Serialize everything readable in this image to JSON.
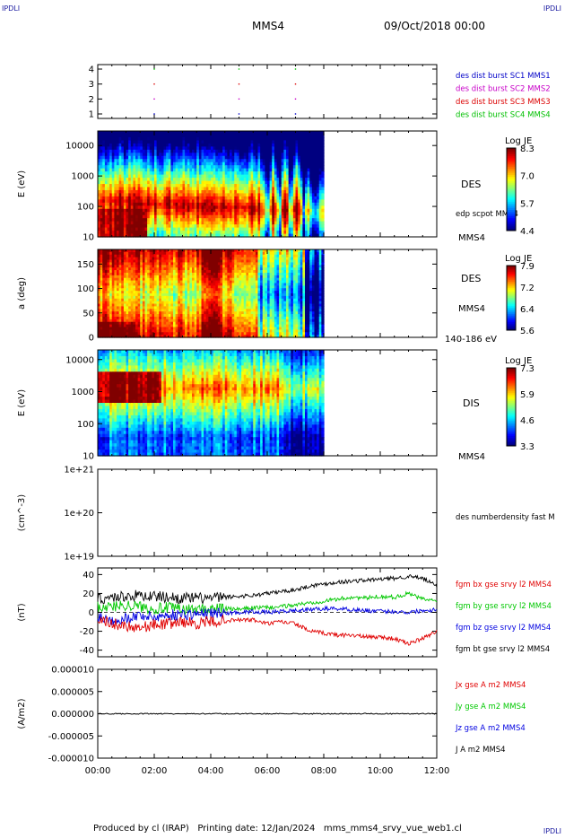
{
  "corner_marks": {
    "top_left": "IPDLI",
    "top_right": "IPDLI",
    "bottom_right": "IPDLI"
  },
  "header": {
    "spacecraft": "MMS4",
    "date": "09/Oct/2018 00:00"
  },
  "footer": {
    "text": "Produced by cl (IRAP)   Printing date: 12/Jan/2024   mms_mms4_srvy_vue_web1.cl"
  },
  "colors": {
    "mms1": "#0000c8",
    "mms2": "#c800c8",
    "mms3": "#dc0000",
    "mms4": "#00c000",
    "bx": "#e00000",
    "by": "#00c800",
    "bz": "#0000e0",
    "bt": "#000000"
  },
  "time_axis": {
    "start_hour": 0,
    "end_hour": 12,
    "ticks": [
      "00:00",
      "02:00",
      "04:00",
      "06:00",
      "08:00",
      "10:00",
      "12:00"
    ],
    "data_end_hour": 8.0
  },
  "chart_data": [
    {
      "type": "scatter",
      "panel": "burst coverage",
      "ylim": [
        0.7,
        4.3
      ],
      "y_ticks": [
        "1",
        "2",
        "3",
        "4"
      ],
      "legend": [
        "des dist burst SC1 MMS1",
        "des dist burst SC2 MMS2",
        "des dist burst SC3 MMS3",
        "des dist burst SC4 MMS4"
      ],
      "points": [
        {
          "t": 2.0,
          "sc": [
            1,
            2,
            3,
            4
          ]
        },
        {
          "t": 5.0,
          "sc": [
            1,
            2,
            3,
            4
          ]
        },
        {
          "t": 7.0,
          "sc": [
            1,
            2,
            3,
            4
          ]
        }
      ]
    },
    {
      "type": "heatmap",
      "panel": "DES energy spectrogram",
      "ylabel": "E (eV)",
      "y_log": true,
      "ylim": [
        10,
        30000
      ],
      "y_ticks": [
        "10",
        "100",
        "1000",
        "10000"
      ],
      "label": "DES",
      "extra_label": "edp scpot MMS4",
      "sc_label": "MMS4",
      "colorbar": {
        "title": "Log JE",
        "max": "8.3",
        "ticks": [
          "8.3",
          "7.0",
          "5.7",
          "4.4"
        ]
      }
    },
    {
      "type": "heatmap",
      "panel": "DES pitch angle",
      "ylabel": "a (deg)",
      "ylim": [
        0,
        180
      ],
      "y_ticks": [
        "0",
        "50",
        "100",
        "150"
      ],
      "label": "DES",
      "sc_label": "MMS4",
      "energy_band": "140-186 eV",
      "colorbar": {
        "title": "Log JE",
        "ticks": [
          "7.9",
          "7.2",
          "6.4",
          "5.6"
        ]
      }
    },
    {
      "type": "heatmap",
      "panel": "DIS energy spectrogram",
      "ylabel": "E (eV)",
      "y_log": true,
      "ylim": [
        10,
        20000
      ],
      "y_ticks": [
        "10",
        "100",
        "1000",
        "10000"
      ],
      "label": "DIS",
      "sc_label": "MMS4",
      "colorbar": {
        "title": "Log JE",
        "ticks": [
          "7.3",
          "5.9",
          "4.6",
          "3.3"
        ]
      }
    },
    {
      "type": "line",
      "panel": "number density",
      "ylabel": "(cm^-3)",
      "y_log": true,
      "ylim": [
        1e+19,
        1e+21
      ],
      "y_ticks": [
        "1e+19",
        "1e+20",
        "1e+21"
      ],
      "legend": [
        "des numberdensity fast M"
      ],
      "series": []
    },
    {
      "type": "line",
      "panel": "magnetic field",
      "ylabel": "(nT)",
      "ylim": [
        -47,
        47
      ],
      "y_ticks": [
        "40",
        "20",
        "0",
        "-20",
        "-40"
      ],
      "legend": [
        "fgm bx gse srvy l2 MMS4",
        "fgm by gse srvy l2 MMS4",
        "fgm bz gse srvy l2 MMS4",
        "fgm bt gse srvy l2 MMS4"
      ],
      "x": [
        0,
        0.5,
        1,
        1.5,
        2,
        2.5,
        3,
        3.5,
        4,
        4.5,
        5,
        5.5,
        6,
        6.5,
        7,
        7.5,
        8,
        8.5,
        9,
        9.5,
        10,
        10.5,
        11,
        11.5,
        12
      ],
      "series": [
        {
          "name": "fgm bx gse srvy l2 MMS4",
          "values": [
            -6,
            -12,
            -14,
            -16,
            -13,
            -12,
            -10,
            -12,
            -10,
            -9,
            -8,
            -8,
            -12,
            -10,
            -12,
            -20,
            -22,
            -24,
            -24,
            -26,
            -26,
            -28,
            -33,
            -28,
            -20
          ]
        },
        {
          "name": "fgm by gse srvy l2 MMS4",
          "values": [
            6,
            6,
            8,
            6,
            4,
            5,
            3,
            3,
            4,
            4,
            3,
            5,
            5,
            6,
            8,
            10,
            12,
            14,
            16,
            15,
            17,
            16,
            20,
            14,
            12
          ]
        },
        {
          "name": "fgm bz gse srvy l2 MMS4",
          "values": [
            -4,
            -8,
            -6,
            -3,
            -5,
            -3,
            -2,
            -2,
            -1,
            -1,
            0,
            1,
            0,
            1,
            2,
            3,
            4,
            4,
            3,
            2,
            1,
            1,
            0,
            2,
            3
          ]
        },
        {
          "name": "fgm bt gse srvy l2 MMS4",
          "values": [
            14,
            16,
            17,
            18,
            17,
            16,
            15,
            15,
            15,
            16,
            17,
            18,
            20,
            22,
            24,
            28,
            30,
            32,
            33,
            34,
            35,
            36,
            38,
            36,
            28
          ]
        }
      ]
    },
    {
      "type": "line",
      "panel": "current density",
      "ylabel": "(A/m2)",
      "ylim": [
        -1e-05,
        1e-05
      ],
      "y_ticks": [
        "0.000010",
        "0.000005",
        "0.000000",
        "-0.000005",
        "-0.000010"
      ],
      "legend": [
        "Jx gse A m2 MMS4",
        "Jy gse A m2 MMS4",
        "Jz gse A m2 MMS4",
        "J A m2 MMS4"
      ],
      "series": [
        {
          "name": "J A m2 MMS4",
          "values": [
            0,
            0,
            0,
            0,
            0,
            0,
            0,
            0,
            0,
            0,
            0,
            0,
            0
          ]
        }
      ]
    }
  ]
}
